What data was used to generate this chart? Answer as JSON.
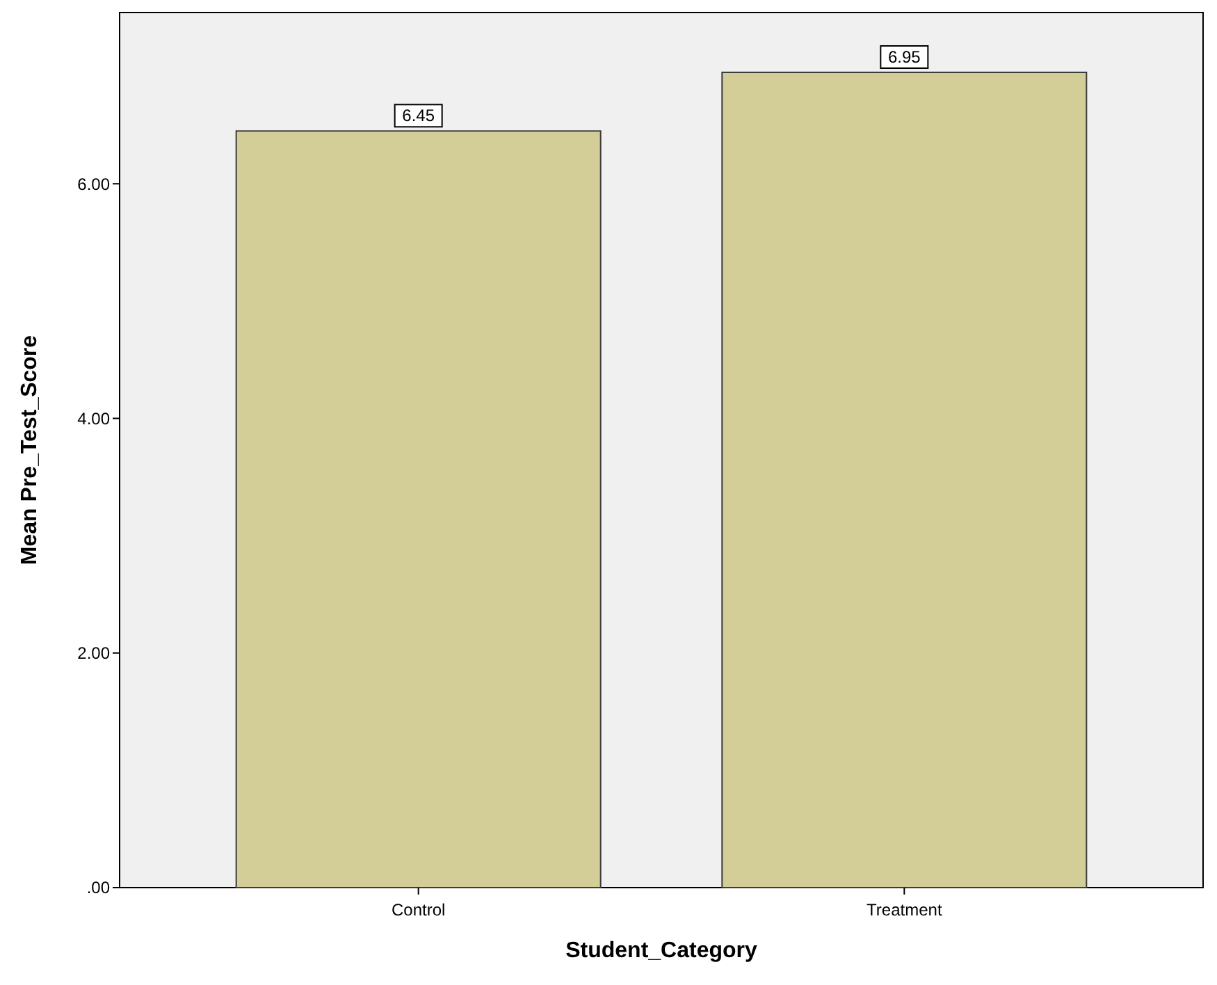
{
  "chart_data": {
    "type": "bar",
    "xlabel": "Student_Category",
    "ylabel": "Mean Pre_Test_Score",
    "categories": [
      "Control",
      "Treatment"
    ],
    "values": [
      6.45,
      6.95
    ],
    "color": "#d3ce98",
    "data_labels": true,
    "ylim": [
      0,
      7.46
    ],
    "yticks": [
      {
        "value": 0,
        "label": ".00"
      },
      {
        "value": 2,
        "label": "2.00"
      },
      {
        "value": 4,
        "label": "4.00"
      },
      {
        "value": 6,
        "label": "6.00"
      }
    ],
    "grid": false
  }
}
